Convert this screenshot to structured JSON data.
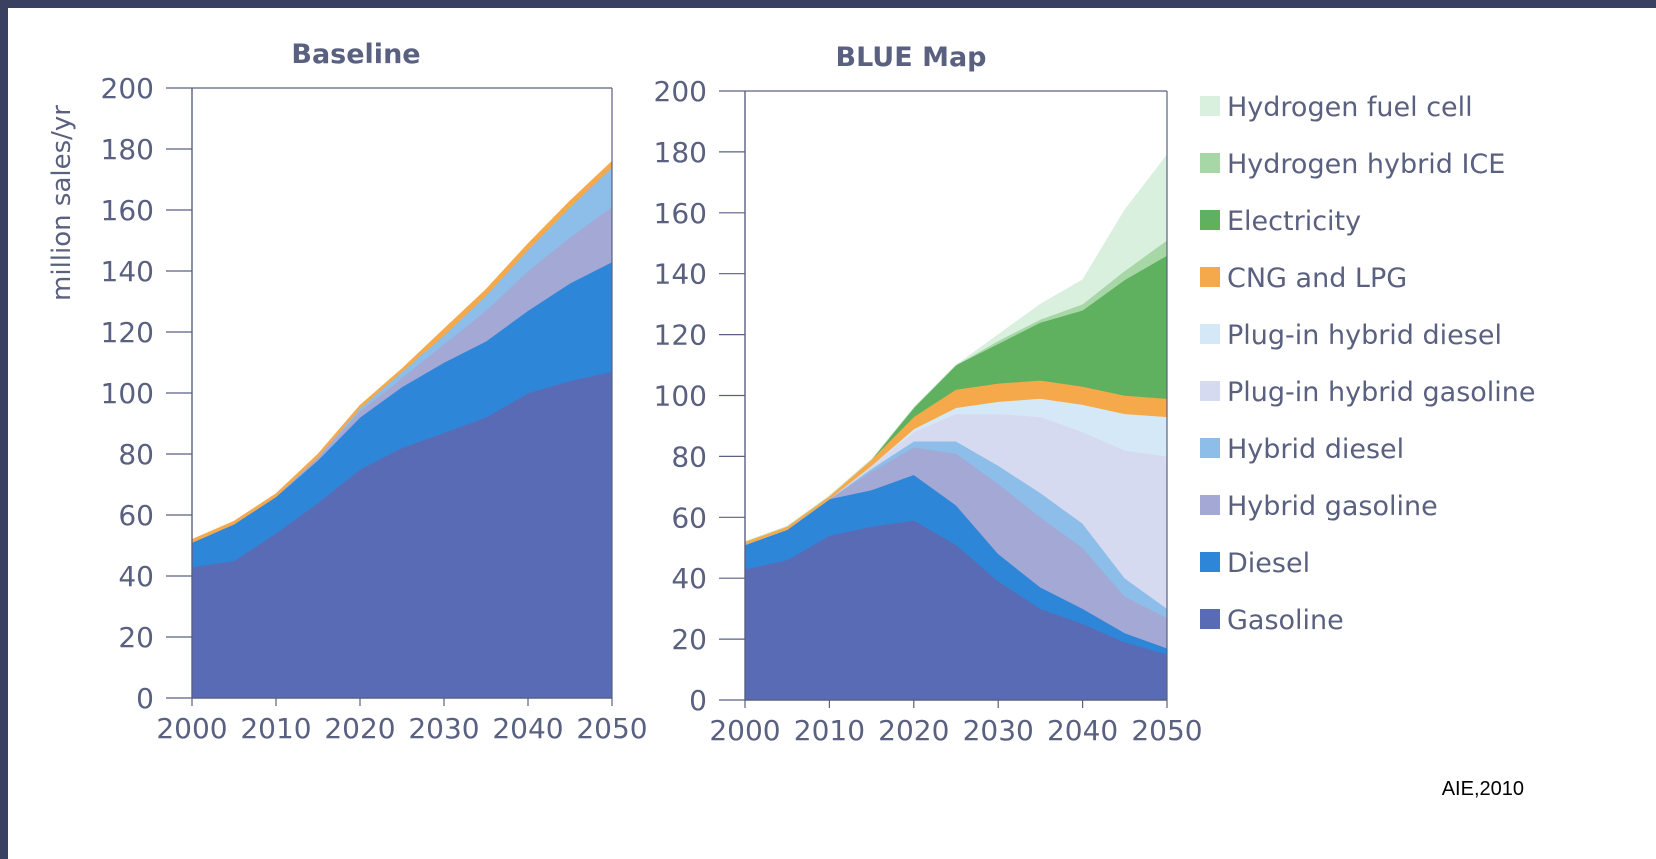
{
  "source_note": "AIE,2010",
  "chart_data": [
    {
      "type": "area",
      "stacked": true,
      "title": "Baseline",
      "ylabel": "million sales/yr",
      "xlabel": "",
      "x": [
        2000,
        2005,
        2010,
        2015,
        2020,
        2025,
        2030,
        2035,
        2040,
        2045,
        2050
      ],
      "xticks": [
        "2000",
        "2010",
        "2020",
        "2030",
        "2040",
        "2050"
      ],
      "yticks": [
        "0",
        "20",
        "40",
        "60",
        "80",
        "100",
        "120",
        "140",
        "160",
        "180",
        "200"
      ],
      "ylim": [
        0,
        200
      ],
      "xlim": [
        2000,
        2050
      ],
      "series": [
        {
          "name": "Gasoline",
          "color": "#5a6bb5",
          "values": [
            43,
            45,
            54,
            64,
            75,
            82,
            87,
            92,
            100,
            104,
            107
          ]
        },
        {
          "name": "Diesel",
          "color": "#2e86d8",
          "values": [
            8,
            12,
            12,
            14,
            17,
            20,
            23,
            25,
            27,
            32,
            36
          ]
        },
        {
          "name": "Hybrid gasoline",
          "color": "#a3a8d4",
          "values": [
            0,
            0,
            0,
            1,
            2,
            3,
            6,
            10,
            13,
            15,
            18
          ]
        },
        {
          "name": "Hybrid diesel",
          "color": "#8dbde9",
          "values": [
            0,
            0,
            0,
            0,
            1,
            2,
            3,
            5,
            7,
            10,
            13
          ]
        },
        {
          "name": "CNG and LPG",
          "color": "#f5a94a",
          "values": [
            1,
            1,
            1,
            1,
            1,
            1,
            2,
            2,
            2,
            2,
            2
          ]
        }
      ]
    },
    {
      "type": "area",
      "stacked": true,
      "title": "BLUE Map",
      "xlabel": "",
      "ylabel": "",
      "x": [
        2000,
        2005,
        2010,
        2015,
        2020,
        2025,
        2030,
        2035,
        2040,
        2045,
        2050
      ],
      "xticks": [
        "2000",
        "2010",
        "2020",
        "2030",
        "2040",
        "2050"
      ],
      "yticks": [
        "0",
        "20",
        "40",
        "60",
        "80",
        "100",
        "120",
        "140",
        "160",
        "180",
        "200"
      ],
      "ylim": [
        0,
        200
      ],
      "xlim": [
        2000,
        2050
      ],
      "series": [
        {
          "name": "Gasoline",
          "color": "#5a6bb5",
          "values": [
            43,
            46,
            54,
            57,
            59,
            51,
            39,
            30,
            25,
            19,
            15
          ]
        },
        {
          "name": "Diesel",
          "color": "#2e86d8",
          "values": [
            8,
            10,
            12,
            12,
            15,
            13,
            9,
            7,
            5,
            3,
            2
          ]
        },
        {
          "name": "Hybrid gasoline",
          "color": "#a3a8d4",
          "values": [
            0,
            0,
            0,
            6,
            9,
            17,
            23,
            23,
            20,
            12,
            10
          ]
        },
        {
          "name": "Hybrid diesel",
          "color": "#8dbde9",
          "values": [
            0,
            0,
            0,
            1,
            2,
            4,
            6,
            8,
            8,
            6,
            3
          ]
        },
        {
          "name": "Plug-in hybrid gasoline",
          "color": "#d6daf0",
          "values": [
            0,
            0,
            0,
            1,
            3,
            9,
            17,
            25,
            30,
            42,
            50
          ]
        },
        {
          "name": "Plug-in hybrid diesel",
          "color": "#d4e8f8",
          "values": [
            0,
            0,
            0,
            0,
            1,
            2,
            4,
            6,
            9,
            12,
            13
          ]
        },
        {
          "name": "CNG and LPG",
          "color": "#f5a94a",
          "values": [
            1,
            1,
            1,
            2,
            4,
            6,
            6,
            6,
            6,
            6,
            6
          ]
        },
        {
          "name": "Electricity",
          "color": "#5fb05f",
          "values": [
            0,
            0,
            0,
            0,
            3,
            8,
            13,
            19,
            25,
            38,
            47
          ]
        },
        {
          "name": "Hydrogen hybrid ICE",
          "color": "#a7d7a7",
          "values": [
            0,
            0,
            0,
            0,
            0,
            0,
            1,
            1,
            2,
            3,
            5
          ]
        },
        {
          "name": "Hydrogen fuel cell",
          "color": "#d9f0df",
          "values": [
            0,
            0,
            0,
            0,
            0,
            0,
            2,
            5,
            8,
            20,
            28
          ]
        }
      ]
    }
  ],
  "legend": [
    {
      "label": "Hydrogen fuel cell",
      "color": "#d9f0df"
    },
    {
      "label": "Hydrogen hybrid ICE",
      "color": "#a7d7a7"
    },
    {
      "label": "Electricity",
      "color": "#5fb05f"
    },
    {
      "label": "CNG and LPG",
      "color": "#f5a94a"
    },
    {
      "label": "Plug-in hybrid diesel",
      "color": "#d4e8f8"
    },
    {
      "label": "Plug-in hybrid gasoline",
      "color": "#d6daf0"
    },
    {
      "label": "Hybrid diesel",
      "color": "#8dbde9"
    },
    {
      "label": "Hybrid gasoline",
      "color": "#a3a8d4"
    },
    {
      "label": "Diesel",
      "color": "#2e86d8"
    },
    {
      "label": "Gasoline",
      "color": "#5a6bb5"
    }
  ]
}
